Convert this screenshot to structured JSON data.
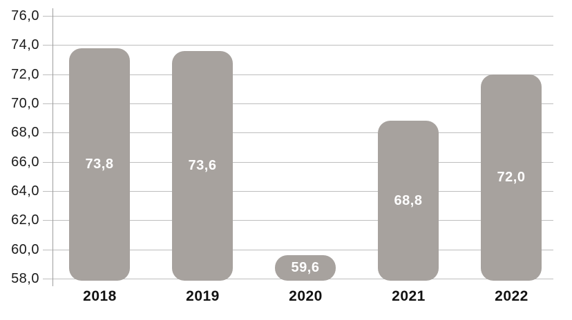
{
  "chart_data": {
    "type": "bar",
    "title": "",
    "xlabel": "",
    "ylabel": "",
    "categories": [
      "2018",
      "2019",
      "2020",
      "2021",
      "2022"
    ],
    "values": [
      73.8,
      73.6,
      59.6,
      68.8,
      72.0
    ],
    "value_labels": [
      "73,8",
      "73,6",
      "59,6",
      "68,8",
      "72,0"
    ],
    "y_ticks": [
      76,
      74,
      72,
      70,
      68,
      66,
      64,
      62,
      60,
      58
    ],
    "y_tick_labels": [
      "76,0",
      "74,0",
      "72,0",
      "70,0",
      "68,0",
      "66,0",
      "64,0",
      "62,0",
      "60,0",
      "58,0"
    ],
    "ylim": [
      58,
      76
    ],
    "grid": true,
    "legend": false,
    "decimal_separator": ",",
    "colors": {
      "bar": "#a7a29e",
      "value_label": "#ffffff",
      "grid": "#bdbdbd",
      "axis": "#9d9d9d",
      "tick_text": "#1a1a1a",
      "category_text": "#111111",
      "background": "#ffffff"
    }
  }
}
